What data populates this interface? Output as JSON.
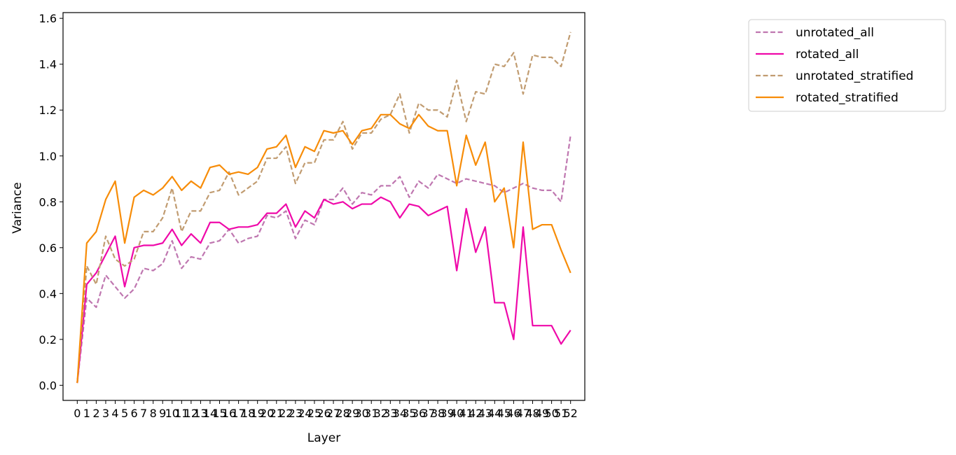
{
  "chart_data": {
    "type": "line",
    "title": "",
    "xlabel": "Layer",
    "ylabel": "Variance",
    "x": [
      0,
      1,
      2,
      3,
      4,
      5,
      6,
      7,
      8,
      9,
      10,
      11,
      12,
      13,
      14,
      15,
      16,
      17,
      18,
      19,
      20,
      21,
      22,
      23,
      24,
      25,
      26,
      27,
      28,
      29,
      30,
      31,
      32,
      33,
      34,
      35,
      36,
      37,
      38,
      39,
      40,
      41,
      42,
      43,
      44,
      45,
      46,
      47,
      48,
      49,
      50,
      51,
      52
    ],
    "xticks": [
      "0",
      "1",
      "2",
      "3",
      "4",
      "5",
      "6",
      "7",
      "8",
      "9",
      "10",
      "11",
      "12",
      "13",
      "14",
      "15",
      "16",
      "17",
      "18",
      "19",
      "20",
      "21",
      "22",
      "23",
      "24",
      "25",
      "26",
      "27",
      "28",
      "29",
      "30",
      "31",
      "32",
      "33",
      "34",
      "35",
      "36",
      "37",
      "38",
      "39",
      "40",
      "41",
      "42",
      "43",
      "44",
      "45",
      "46",
      "47",
      "48",
      "49",
      "50",
      "51",
      "52"
    ],
    "yticks": [
      "0.0",
      "0.2",
      "0.4",
      "0.6",
      "0.8",
      "1.0",
      "1.2",
      "1.4",
      "1.6"
    ],
    "xlim": [
      -1.5,
      53.5
    ],
    "ylim": [
      -0.066,
      1.625
    ],
    "grid": false,
    "legend_position": "outside-top-right",
    "series": [
      {
        "name": "unrotated_all",
        "color": "#bf77b0",
        "style": "dashed",
        "values": [
          0.01,
          0.38,
          0.34,
          0.48,
          0.43,
          0.38,
          0.42,
          0.51,
          0.5,
          0.53,
          0.63,
          0.51,
          0.56,
          0.55,
          0.62,
          0.63,
          0.68,
          0.62,
          0.64,
          0.65,
          0.74,
          0.73,
          0.76,
          0.64,
          0.72,
          0.7,
          0.81,
          0.81,
          0.86,
          0.79,
          0.84,
          0.83,
          0.87,
          0.87,
          0.91,
          0.82,
          0.89,
          0.86,
          0.92,
          0.9,
          0.88,
          0.9,
          0.89,
          0.88,
          0.87,
          0.84,
          0.86,
          0.88,
          0.86,
          0.85,
          0.85,
          0.8,
          1.09
        ]
      },
      {
        "name": "rotated_all",
        "color": "#ef09a9",
        "style": "solid",
        "values": [
          0.01,
          0.44,
          0.49,
          0.57,
          0.65,
          0.43,
          0.6,
          0.61,
          0.61,
          0.62,
          0.68,
          0.61,
          0.66,
          0.62,
          0.71,
          0.71,
          0.68,
          0.69,
          0.69,
          0.7,
          0.75,
          0.75,
          0.79,
          0.69,
          0.76,
          0.73,
          0.81,
          0.79,
          0.8,
          0.77,
          0.79,
          0.79,
          0.82,
          0.8,
          0.73,
          0.79,
          0.78,
          0.74,
          0.76,
          0.78,
          0.5,
          0.77,
          0.58,
          0.69,
          0.36,
          0.36,
          0.2,
          0.69,
          0.26,
          0.26,
          0.26,
          0.18,
          0.24
        ]
      },
      {
        "name": "unrotated_stratified",
        "color": "#c19c71",
        "style": "dashed",
        "values": [
          0.01,
          0.52,
          0.44,
          0.65,
          0.55,
          0.52,
          0.55,
          0.67,
          0.67,
          0.73,
          0.86,
          0.67,
          0.76,
          0.76,
          0.84,
          0.85,
          0.93,
          0.83,
          0.86,
          0.89,
          0.99,
          0.99,
          1.04,
          0.88,
          0.97,
          0.97,
          1.07,
          1.07,
          1.15,
          1.03,
          1.1,
          1.1,
          1.16,
          1.18,
          1.27,
          1.1,
          1.23,
          1.2,
          1.2,
          1.17,
          1.33,
          1.15,
          1.28,
          1.27,
          1.4,
          1.39,
          1.45,
          1.27,
          1.44,
          1.43,
          1.43,
          1.39,
          1.54
        ]
      },
      {
        "name": "rotated_stratified",
        "color": "#f78c08",
        "style": "solid",
        "values": [
          0.01,
          0.62,
          0.67,
          0.81,
          0.89,
          0.62,
          0.82,
          0.85,
          0.83,
          0.86,
          0.91,
          0.85,
          0.89,
          0.86,
          0.95,
          0.96,
          0.92,
          0.93,
          0.92,
          0.95,
          1.03,
          1.04,
          1.09,
          0.95,
          1.04,
          1.02,
          1.11,
          1.1,
          1.11,
          1.05,
          1.11,
          1.12,
          1.18,
          1.18,
          1.14,
          1.12,
          1.18,
          1.13,
          1.11,
          1.11,
          0.87,
          1.09,
          0.96,
          1.06,
          0.8,
          0.86,
          0.6,
          1.06,
          0.68,
          0.7,
          0.7,
          0.59,
          0.49
        ]
      }
    ]
  }
}
